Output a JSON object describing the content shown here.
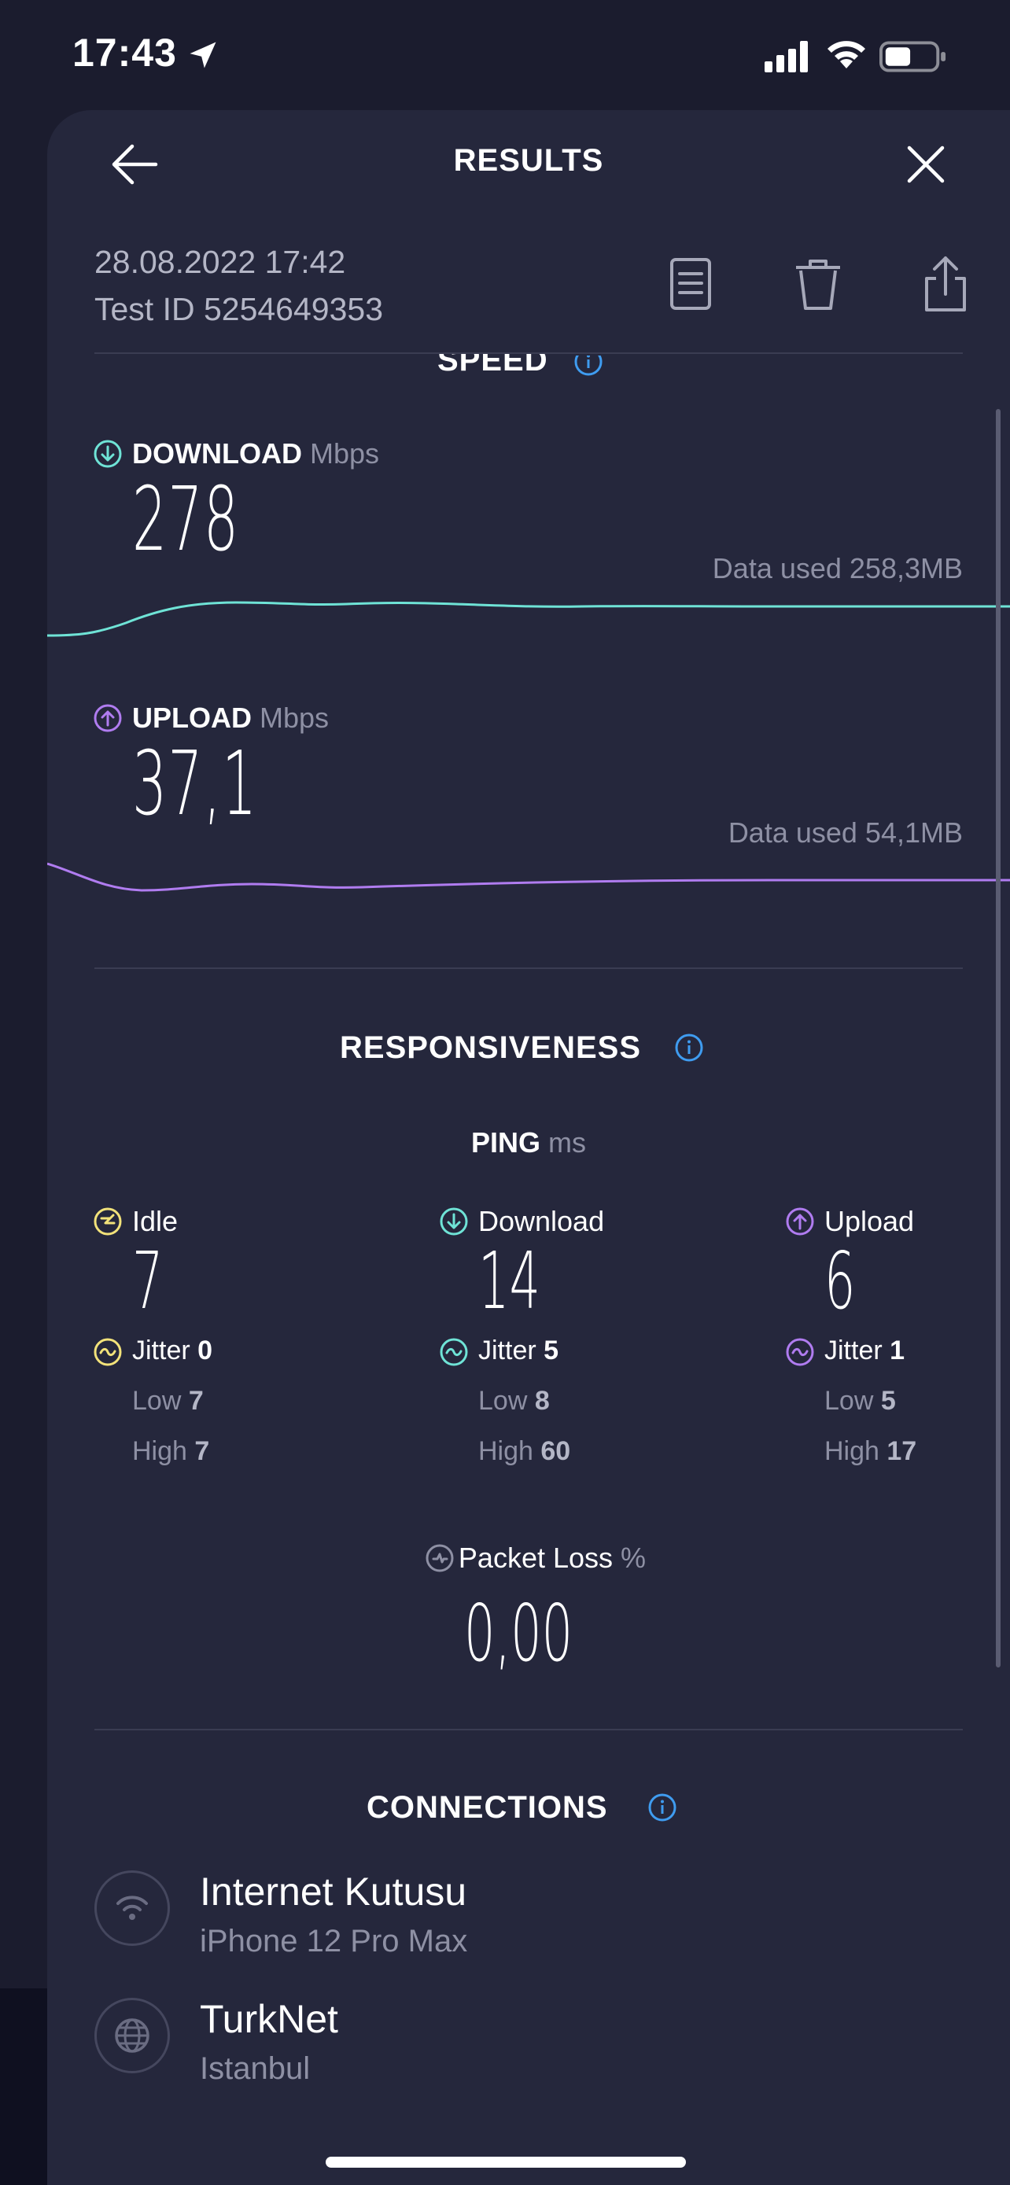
{
  "status_bar": {
    "time": "17:43"
  },
  "header": {
    "title": "RESULTS"
  },
  "meta": {
    "date": "28.08.2022 17:42",
    "test_id": "Test ID 5254649353"
  },
  "speed": {
    "title": "SPEED",
    "download": {
      "label": "DOWNLOAD",
      "unit": "Mbps",
      "value": "278",
      "data_used": "Data used 258,3MB"
    },
    "upload": {
      "label": "UPLOAD",
      "unit": "Mbps",
      "value": "37,1",
      "data_used": "Data used 54,1MB"
    }
  },
  "responsiveness": {
    "title": "RESPONSIVENESS",
    "ping_label": "PING",
    "ping_unit": "ms",
    "columns": [
      {
        "label": "Idle",
        "value": "7",
        "jitter_label": "Jitter",
        "jitter": "0",
        "low_label": "Low",
        "low": "7",
        "high_label": "High",
        "high": "7"
      },
      {
        "label": "Download",
        "value": "14",
        "jitter_label": "Jitter",
        "jitter": "5",
        "low_label": "Low",
        "low": "8",
        "high_label": "High",
        "high": "60"
      },
      {
        "label": "Upload",
        "value": "6",
        "jitter_label": "Jitter",
        "jitter": "1",
        "low_label": "Low",
        "low": "5",
        "high_label": "High",
        "high": "17"
      }
    ],
    "packet_loss": {
      "label": "Packet Loss",
      "unit": "%",
      "value": "0,00"
    }
  },
  "connections": {
    "title": "CONNECTIONS",
    "items": [
      {
        "name": "Internet Kutusu",
        "sub": "iPhone 12 Pro Max",
        "icon": "wifi-icon"
      },
      {
        "name": "TurkNet",
        "sub": "Istanbul",
        "icon": "globe-icon"
      }
    ]
  },
  "colors": {
    "download": "#6fe3d6",
    "upload": "#b07cf0",
    "idle": "#f2e27a",
    "info": "#3f9cf0",
    "background": "#25273c"
  }
}
